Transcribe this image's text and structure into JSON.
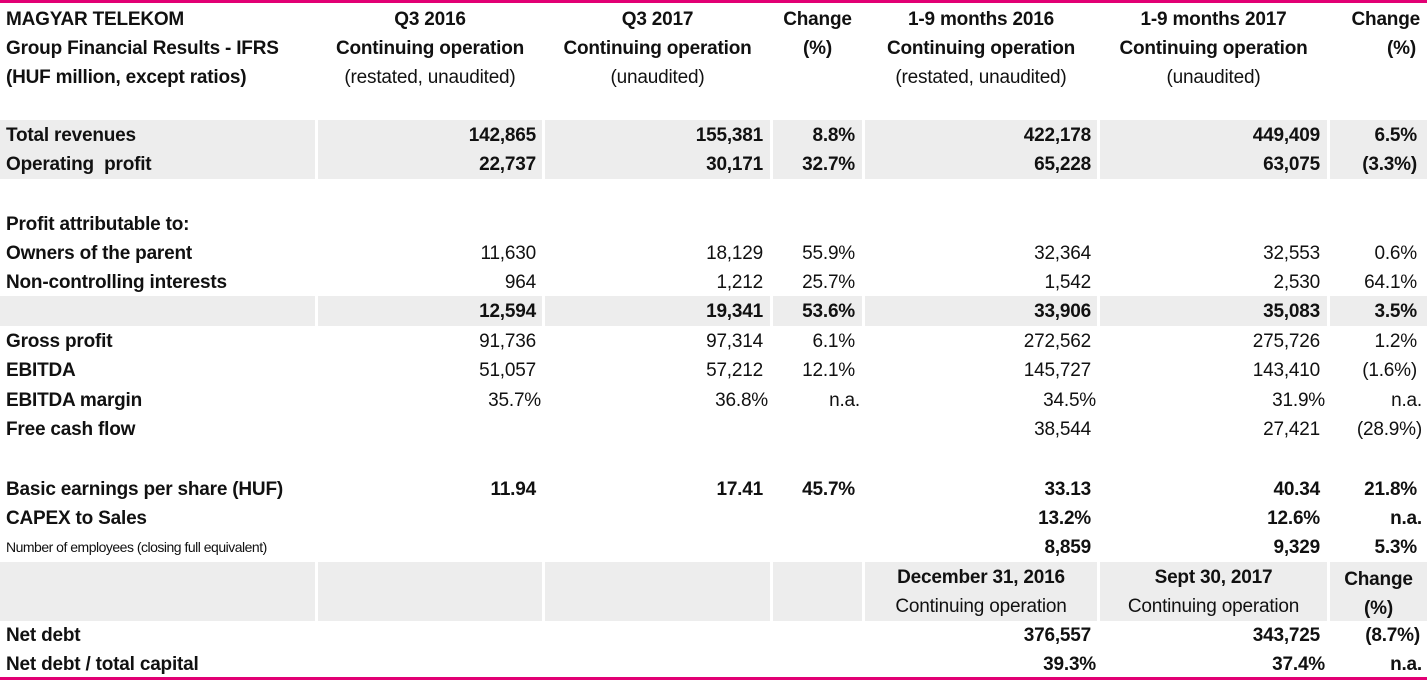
{
  "colors": {
    "accent": "#e20074",
    "row_shade": "#ededed"
  },
  "header": {
    "title_lines": [
      "MAGYAR TELEKOM",
      "Group Financial Results - IFRS",
      "(HUF million, except ratios)"
    ],
    "q3_2016": [
      "Q3 2016",
      "Continuing operation",
      "(restated, unaudited)"
    ],
    "q3_2017": [
      "Q3 2017",
      "Continuing operation",
      "(unaudited)"
    ],
    "change_q": [
      "Change",
      "(%)"
    ],
    "m9_2016": [
      "1-9 months 2016",
      "Continuing operation",
      "(restated, unaudited)"
    ],
    "m9_2017": [
      "1-9 months 2017",
      "Continuing operation",
      "(unaudited)"
    ],
    "change_m": [
      "Change",
      "(%)"
    ]
  },
  "rows": {
    "total_revenues": {
      "label": "Total revenues",
      "q3_2016": "142,865",
      "q3_2017": "155,381",
      "chg_q": "8.8%",
      "m9_2016": "422,178",
      "m9_2017": "449,409",
      "chg_m": "6.5%"
    },
    "operating_profit": {
      "label": "Operating  profit",
      "q3_2016": "22,737",
      "q3_2017": "30,171",
      "chg_q": "32.7%",
      "m9_2016": "65,228",
      "m9_2017": "63,075",
      "chg_m": "(3.3%)"
    },
    "profit_attr": {
      "label": "Profit attributable to:"
    },
    "owners": {
      "label": "Owners of the parent",
      "q3_2016": "11,630",
      "q3_2017": "18,129",
      "chg_q": "55.9%",
      "m9_2016": "32,364",
      "m9_2017": "32,553",
      "chg_m": "0.6%"
    },
    "nci": {
      "label": "Non-controlling interests",
      "q3_2016": "964",
      "q3_2017": "1,212",
      "chg_q": "25.7%",
      "m9_2016": "1,542",
      "m9_2017": "2,530",
      "chg_m": "64.1%"
    },
    "subtotal": {
      "q3_2016": "12,594",
      "q3_2017": "19,341",
      "chg_q": "53.6%",
      "m9_2016": "33,906",
      "m9_2017": "35,083",
      "chg_m": "3.5%"
    },
    "gross_profit": {
      "label": "Gross profit",
      "q3_2016": "91,736",
      "q3_2017": "97,314",
      "chg_q": "6.1%",
      "m9_2016": "272,562",
      "m9_2017": "275,726",
      "chg_m": "1.2%"
    },
    "ebitda": {
      "label": "EBITDA",
      "q3_2016": "51,057",
      "q3_2017": "57,212",
      "chg_q": "12.1%",
      "m9_2016": "145,727",
      "m9_2017": "143,410",
      "chg_m": "(1.6%)"
    },
    "ebitda_margin": {
      "label": "EBITDA margin",
      "q3_2016": "35.7%",
      "q3_2017": "36.8%",
      "chg_q": "n.a.",
      "m9_2016": "34.5%",
      "m9_2017": "31.9%",
      "chg_m": "n.a."
    },
    "fcf": {
      "label": "Free cash flow",
      "m9_2016": "38,544",
      "m9_2017": "27,421",
      "chg_m": "(28.9%)"
    },
    "eps": {
      "label": "Basic earnings per share (HUF)",
      "q3_2016": "11.94",
      "q3_2017": "17.41",
      "chg_q": "45.7%",
      "m9_2016": "33.13",
      "m9_2017": "40.34",
      "chg_m": "21.8%"
    },
    "capex": {
      "label": "CAPEX to Sales",
      "m9_2016": "13.2%",
      "m9_2017": "12.6%",
      "chg_m": "n.a."
    },
    "employees": {
      "label": "Number of employees (closing full equivalent)",
      "m9_2016": "8,859",
      "m9_2017": "9,329",
      "chg_m": "5.3%"
    },
    "net_debt": {
      "label": "Net debt",
      "m9_2016": "376,557",
      "m9_2017": "343,725",
      "chg_m": "(8.7%)"
    },
    "net_debt_cap": {
      "label": "Net debt / total capital",
      "m9_2016": "39.3%",
      "m9_2017": "37.4%",
      "chg_m": "n.a."
    }
  },
  "subheader": {
    "dec2016": [
      "December 31, 2016",
      "Continuing operation"
    ],
    "sep2017": [
      "Sept 30, 2017",
      "Continuing operation"
    ],
    "change": [
      "Change",
      "(%)"
    ]
  }
}
